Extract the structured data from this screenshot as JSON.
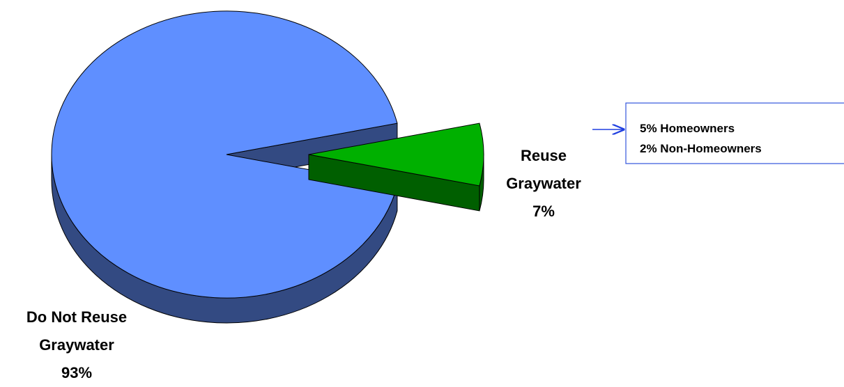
{
  "chart_data": {
    "type": "pie",
    "categories": [
      "Do Not Reuse Graywater",
      "Reuse Graywater"
    ],
    "values": [
      93,
      7
    ],
    "value_labels": [
      "93%",
      "7%"
    ],
    "colors": [
      "#5f8fff",
      "#00b000"
    ],
    "side_colors": [
      "#334a82",
      "#005f00"
    ],
    "annotation": [
      "5% Homeowners",
      "2% Non-Homeowners"
    ]
  }
}
